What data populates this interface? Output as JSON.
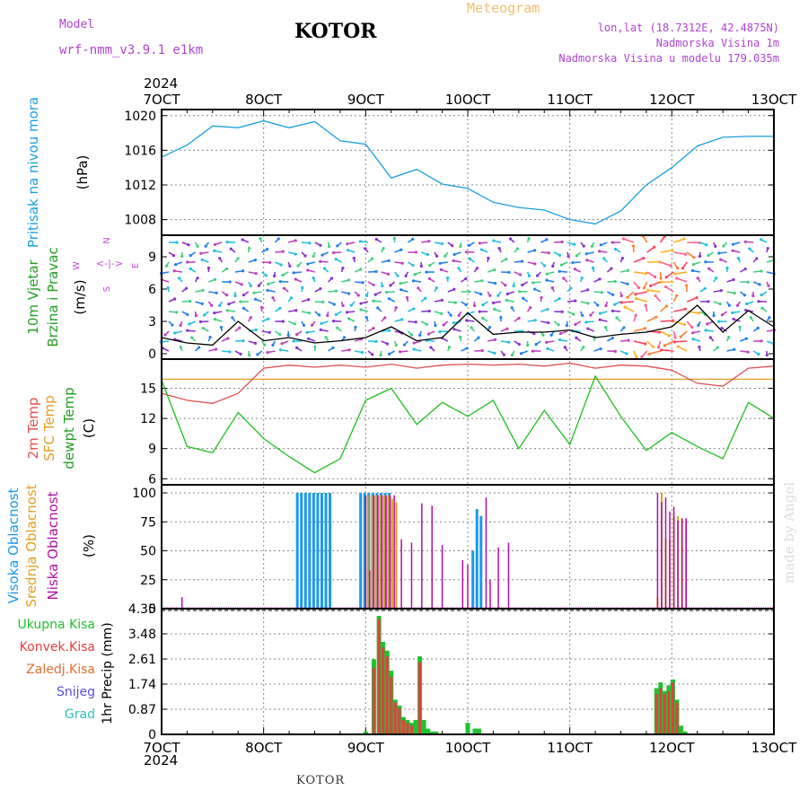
{
  "header": {
    "model_label": "Model",
    "model_name": "wrf-nmm_v3.9.1  e1km",
    "title": "KOTOR",
    "meteogram_label": "Meteogram",
    "lonlat": "lon,lat (18.7312E, 42.4875N)",
    "elevation": "Nadmorska Visina 1m",
    "model_elevation": "Nadmorska Visina u modelu 179.035m",
    "year_top": "2024",
    "year_bottom": "2024",
    "footer": "KOTOR",
    "credit": "made by Angel"
  },
  "colors": {
    "pressure": "#1aa0e0",
    "temp2m": "#e05050",
    "sfc": "#e0a020",
    "dew": "#20c020",
    "high_cloud": "#1a9ae6",
    "mid_cloud": "#e0a020",
    "low_cloud": "#b010a0",
    "total_precip": "#22c030",
    "conv_precip": "#e04040",
    "grid": "#888888"
  },
  "chart_data": [
    {
      "type": "line",
      "panel": "pressure",
      "ylabel_lines": [
        "Pritisak na nivou mora",
        "(hPa)"
      ],
      "yticks": [
        1008,
        1012,
        1016,
        1020
      ],
      "ylim": [
        1006.2,
        1020.7
      ],
      "x_categories": [
        "7OCT",
        "8OCT",
        "9OCT",
        "10OCT",
        "11OCT",
        "12OCT",
        "13OCT"
      ],
      "x_days": [
        0,
        0.25,
        0.5,
        0.75,
        1.0,
        1.25,
        1.5,
        1.75,
        2.0,
        2.25,
        2.5,
        2.75,
        3.0,
        3.25,
        3.5,
        3.75,
        4.0,
        4.25,
        4.5,
        4.75,
        5.0,
        5.25,
        5.5,
        5.75,
        6.0
      ],
      "series": [
        {
          "values": [
            1015.2,
            1016.6,
            1018.8,
            1018.6,
            1019.4,
            1018.6,
            1019.3,
            1017.1,
            1016.7,
            1012.8,
            1013.8,
            1012.1,
            1011.6,
            1010.0,
            1009.4,
            1009.1,
            1008.0,
            1007.5,
            1009.0,
            1012.0,
            1014.0,
            1016.5,
            1017.5,
            1017.6,
            1017.6
          ]
        }
      ]
    },
    {
      "type": "line",
      "panel": "wind",
      "ylabel_lines": [
        "10m Vjetar",
        "Brzina i Pravac",
        "(m/s)"
      ],
      "compass": {
        "n": "N",
        "s": "S",
        "e": "E",
        "w": "W",
        "glyph": "<-|->"
      },
      "yticks": [
        0,
        3,
        6,
        9
      ],
      "ylim": [
        -0.5,
        11
      ],
      "x_days": [
        0,
        0.25,
        0.5,
        0.75,
        1.0,
        1.25,
        1.5,
        1.75,
        2.0,
        2.25,
        2.5,
        2.75,
        3.0,
        3.25,
        3.5,
        3.75,
        4.0,
        4.25,
        4.5,
        4.75,
        5.0,
        5.25,
        5.5,
        5.75,
        6.0
      ],
      "series": [
        {
          "values": [
            1.5,
            1.0,
            0.8,
            3.0,
            1.2,
            1.5,
            1.0,
            1.2,
            1.5,
            2.5,
            1.2,
            1.5,
            3.8,
            1.8,
            2.0,
            2.0,
            2.2,
            1.5,
            1.8,
            2.0,
            2.5,
            4.5,
            2.0,
            4.0,
            2.5
          ]
        }
      ]
    },
    {
      "type": "line",
      "panel": "temperature",
      "ylabel_lines": [
        "2m Temp",
        "SFC Temp",
        "dewpt Temp",
        "(C)"
      ],
      "yticks": [
        6,
        9,
        12,
        15
      ],
      "ylim": [
        5.4,
        17.9
      ],
      "x_days": [
        0,
        0.25,
        0.5,
        0.75,
        1.0,
        1.25,
        1.5,
        1.75,
        2.0,
        2.25,
        2.5,
        2.75,
        3.0,
        3.25,
        3.5,
        3.75,
        4.0,
        4.25,
        4.5,
        4.75,
        5.0,
        5.25,
        5.5,
        5.75,
        6.0
      ],
      "series": [
        {
          "name": "2m Temp",
          "values": [
            14.5,
            13.8,
            13.5,
            14.5,
            17.0,
            17.3,
            17.1,
            17.3,
            17.1,
            17.4,
            17.0,
            17.3,
            17.4,
            17.3,
            17.4,
            17.2,
            17.5,
            17.0,
            17.3,
            17.2,
            16.8,
            15.5,
            15.2,
            17.0,
            17.2
          ]
        },
        {
          "name": "SFC Temp",
          "values": [
            15.9,
            15.9,
            15.9,
            15.9,
            15.9,
            15.9,
            15.9,
            15.9,
            15.9,
            15.9,
            15.9,
            15.9,
            15.9,
            15.9,
            15.9,
            15.9,
            15.9,
            15.9,
            15.9,
            15.9,
            15.9,
            15.9,
            15.9,
            15.9,
            15.9
          ]
        },
        {
          "name": "dewpt Temp",
          "values": [
            15.8,
            9.2,
            8.6,
            12.6,
            10.0,
            8.2,
            6.6,
            8.0,
            13.8,
            15.0,
            11.4,
            13.6,
            12.2,
            13.8,
            9.0,
            12.8,
            9.4,
            16.2,
            12.2,
            8.8,
            10.6,
            9.2,
            8.0,
            13.6,
            12.0
          ]
        }
      ]
    },
    {
      "type": "bar",
      "panel": "clouds",
      "ylabel_lines": [
        "Visoka Oblacnost",
        "Srednja Oblacnost",
        "Niska Oblacnost",
        "(%)"
      ],
      "yticks": [
        0,
        25,
        50,
        75,
        100
      ],
      "ylim": [
        0,
        107
      ],
      "series": [
        {
          "name": "Visoka Oblacnost",
          "x": [
            1.33,
            1.37,
            1.41,
            1.45,
            1.49,
            1.53,
            1.57,
            1.61,
            1.65,
            1.95,
            1.99,
            2.03,
            2.07,
            2.11,
            2.15,
            2.19,
            2.23,
            3.05,
            3.09,
            3.13
          ],
          "values": [
            100,
            100,
            100,
            100,
            100,
            100,
            100,
            100,
            100,
            100,
            100,
            100,
            100,
            100,
            100,
            100,
            100,
            50,
            86,
            80
          ]
        },
        {
          "name": "Srednja Oblacnost",
          "x": [
            2.02,
            2.06,
            2.1,
            2.14,
            2.18,
            2.22,
            2.26,
            2.3,
            4.86,
            4.9,
            4.94,
            4.98,
            5.02,
            5.06,
            5.1,
            5.14
          ],
          "values": [
            98,
            98,
            98,
            98,
            98,
            98,
            95,
            92,
            10,
            100,
            60,
            60,
            80,
            80,
            78,
            78
          ]
        },
        {
          "name": "Niska Oblacnost",
          "x": [
            0.2,
            2.0,
            2.04,
            2.08,
            2.12,
            2.16,
            2.2,
            2.24,
            2.28,
            2.35,
            2.45,
            2.55,
            2.65,
            2.75,
            2.95,
            3.0,
            3.18,
            3.22,
            3.3,
            3.4,
            4.86,
            4.9,
            4.94,
            4.98,
            5.02,
            5.06,
            5.1,
            5.14
          ],
          "values": [
            10,
            98,
            33,
            98,
            98,
            98,
            98,
            98,
            98,
            60,
            57,
            91,
            89,
            55,
            42,
            38,
            96,
            25,
            53,
            57,
            100,
            92,
            96,
            84,
            88,
            76,
            78,
            78
          ]
        }
      ]
    },
    {
      "type": "bar",
      "panel": "precipitation",
      "ylabel_lines": [
        "1hr Precip (mm)"
      ],
      "legend": [
        "Ukupna Kisa",
        "Konvek.Kisa",
        "Zaledj.Kisa",
        "Snijeg",
        "Grad"
      ],
      "legend_colors": [
        "#22c030",
        "#e04040",
        "#e07030",
        "#5050e0",
        "#30c0c0"
      ],
      "yticks": [
        "0",
        "0.87",
        "1.74",
        "2.61",
        "3.48",
        "4.35"
      ],
      "ylim": [
        0,
        4.35
      ],
      "series": [
        {
          "name": "Ukupna Kisa",
          "x": [
            2.0,
            2.08,
            2.13,
            2.17,
            2.21,
            2.25,
            2.29,
            2.33,
            2.37,
            2.41,
            2.45,
            2.49,
            2.53,
            2.57,
            2.61,
            2.65,
            2.69,
            3.0,
            3.07,
            3.11,
            4.85,
            4.89,
            4.93,
            4.97,
            5.01,
            5.05,
            5.09,
            5.13
          ],
          "values": [
            0.1,
            2.6,
            4.1,
            3.2,
            2.9,
            2.2,
            1.2,
            1.0,
            0.6,
            0.5,
            0.4,
            0.5,
            2.7,
            0.5,
            0.2,
            0.1,
            0.1,
            0.4,
            0.2,
            0.2,
            1.6,
            1.8,
            1.5,
            1.7,
            1.9,
            1.2,
            0.3,
            0.1
          ]
        },
        {
          "name": "Konvek.Kisa",
          "x": [
            2.08,
            2.13,
            2.17,
            2.21,
            2.25,
            2.29,
            2.33,
            2.37,
            2.41,
            2.45,
            2.53,
            4.85,
            4.89,
            4.93,
            4.97,
            5.01,
            5.05
          ],
          "values": [
            2.3,
            4.0,
            3.0,
            2.7,
            2.0,
            1.1,
            0.9,
            0.5,
            0.4,
            0.3,
            2.5,
            1.4,
            1.6,
            1.4,
            1.5,
            1.8,
            1.1
          ]
        }
      ]
    }
  ]
}
